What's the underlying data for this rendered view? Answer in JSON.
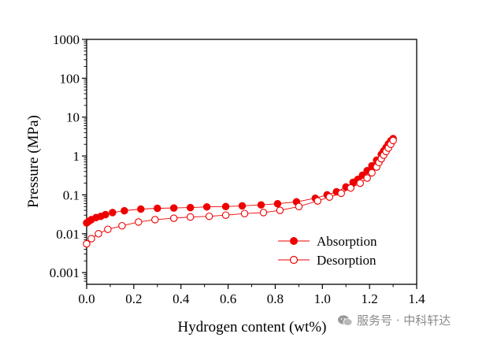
{
  "chart_data": {
    "type": "line",
    "xlabel": "Hydrogen content (wt%)",
    "ylabel": "Pressure (MPa)",
    "xlim": [
      0.0,
      1.4
    ],
    "ylim": [
      0.0005,
      1000
    ],
    "yscale": "log",
    "x_ticks": [
      "0.0",
      "0.2",
      "0.4",
      "0.6",
      "0.8",
      "1.0",
      "1.2",
      "1.4"
    ],
    "y_ticks": [
      "0.001",
      "0.01",
      "0.1",
      "1",
      "10",
      "100",
      "1000"
    ],
    "legend_position": "lower-right",
    "series": [
      {
        "name": "Absorption",
        "marker": "filled-circle",
        "color": "#ee0000",
        "points": [
          [
            0.0,
            0.019
          ],
          [
            0.01,
            0.021
          ],
          [
            0.02,
            0.023
          ],
          [
            0.04,
            0.026
          ],
          [
            0.06,
            0.028
          ],
          [
            0.08,
            0.031
          ],
          [
            0.11,
            0.035
          ],
          [
            0.16,
            0.039
          ],
          [
            0.23,
            0.043
          ],
          [
            0.3,
            0.045
          ],
          [
            0.37,
            0.046
          ],
          [
            0.44,
            0.047
          ],
          [
            0.51,
            0.049
          ],
          [
            0.59,
            0.05
          ],
          [
            0.66,
            0.052
          ],
          [
            0.74,
            0.055
          ],
          [
            0.81,
            0.059
          ],
          [
            0.89,
            0.066
          ],
          [
            0.97,
            0.082
          ],
          [
            1.02,
            0.1
          ],
          [
            1.06,
            0.12
          ],
          [
            1.1,
            0.16
          ],
          [
            1.13,
            0.21
          ],
          [
            1.15,
            0.25
          ],
          [
            1.17,
            0.32
          ],
          [
            1.19,
            0.42
          ],
          [
            1.21,
            0.56
          ],
          [
            1.23,
            0.78
          ],
          [
            1.25,
            1.1
          ],
          [
            1.26,
            1.35
          ],
          [
            1.27,
            1.65
          ],
          [
            1.28,
            2.05
          ],
          [
            1.29,
            2.45
          ],
          [
            1.3,
            2.8
          ]
        ]
      },
      {
        "name": "Desorption",
        "marker": "open-circle",
        "color": "#ee0000",
        "points": [
          [
            0.0,
            0.0055
          ],
          [
            0.02,
            0.0075
          ],
          [
            0.05,
            0.01
          ],
          [
            0.09,
            0.013
          ],
          [
            0.15,
            0.016
          ],
          [
            0.22,
            0.02
          ],
          [
            0.29,
            0.023
          ],
          [
            0.37,
            0.025
          ],
          [
            0.44,
            0.027
          ],
          [
            0.52,
            0.028
          ],
          [
            0.59,
            0.03
          ],
          [
            0.67,
            0.033
          ],
          [
            0.75,
            0.035
          ],
          [
            0.82,
            0.04
          ],
          [
            0.9,
            0.05
          ],
          [
            0.98,
            0.07
          ],
          [
            1.03,
            0.088
          ],
          [
            1.08,
            0.11
          ],
          [
            1.12,
            0.15
          ],
          [
            1.16,
            0.2
          ],
          [
            1.19,
            0.27
          ],
          [
            1.21,
            0.37
          ],
          [
            1.23,
            0.52
          ],
          [
            1.24,
            0.68
          ],
          [
            1.25,
            0.85
          ],
          [
            1.26,
            1.05
          ],
          [
            1.27,
            1.3
          ],
          [
            1.28,
            1.6
          ],
          [
            1.29,
            2.0
          ],
          [
            1.3,
            2.5
          ]
        ]
      }
    ]
  },
  "watermark": {
    "icon": "wechat-icon",
    "text": "服务号 · 中科轩达"
  }
}
